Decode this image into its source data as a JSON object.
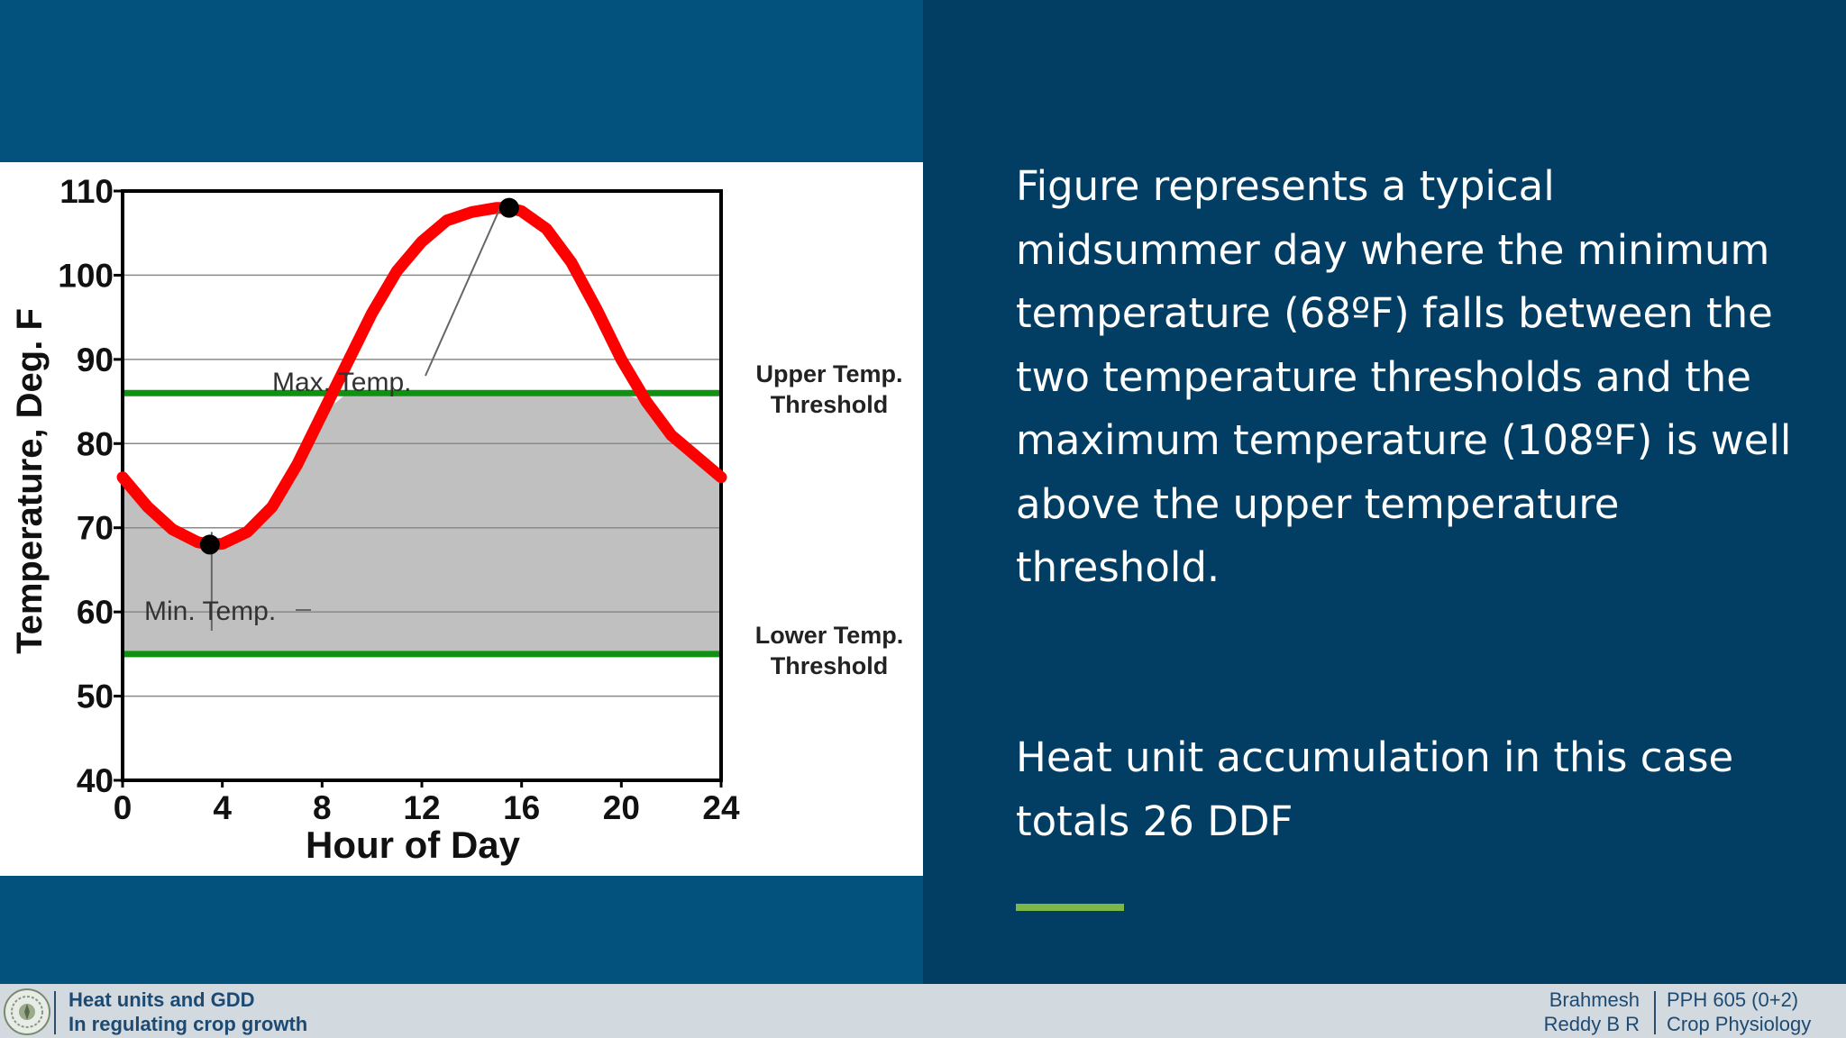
{
  "chart_data": {
    "type": "line",
    "xlabel": "Hour of Day",
    "ylabel": "Temperature, Deg. F",
    "xlim": [
      0,
      24
    ],
    "ylim": [
      40,
      110
    ],
    "x_ticks": [
      "0",
      "4",
      "8",
      "12",
      "16",
      "20",
      "24"
    ],
    "y_ticks": [
      "40",
      "50",
      "60",
      "70",
      "80",
      "90",
      "100",
      "110"
    ],
    "grid": true,
    "series": [
      {
        "color": "#ff0000",
        "x": [
          0,
          1,
          2,
          3,
          3.5,
          4,
          5,
          6,
          7,
          8,
          9,
          10,
          11,
          12,
          13,
          14,
          15,
          15.5,
          16,
          17,
          18,
          19,
          20,
          21,
          22,
          23,
          24
        ],
        "y": [
          76,
          72.5,
          69.8,
          68.3,
          68,
          68.1,
          69.5,
          72.5,
          77.5,
          83.5,
          89.5,
          95.5,
          100.5,
          104,
          106.5,
          107.5,
          108,
          108,
          107.6,
          105.5,
          101.5,
          96,
          90,
          85,
          81,
          78.5,
          76
        ]
      }
    ],
    "points": [
      {
        "label": "Min. Temp.",
        "x": 3.5,
        "y": 68
      },
      {
        "label": "Max. Temp.",
        "x": 15.5,
        "y": 108
      }
    ],
    "thresholds": [
      {
        "label_line1": "Upper Temp.",
        "label_line2": "Threshold",
        "y": 86,
        "color": "#119111"
      },
      {
        "label_line1": "Lower Temp.",
        "label_line2": "Threshold",
        "y": 55,
        "color": "#119111"
      }
    ],
    "shade_color": "#c0c0c0"
  },
  "body_text": "Figure represents a typical midsummer day where the minimum temperature (68ºF) falls between the two temperature thresholds and the maximum temperature (108ºF) is well above the upper temperature threshold.",
  "summary_text": "Heat unit accumulation in this case totals 26 DDF",
  "footer": {
    "title_line1": "Heat units and GDD",
    "title_line2": "In regulating crop growth",
    "author_line1": "Brahmesh",
    "author_line2": "Reddy B R",
    "course_line1": "PPH 605 (0+2)",
    "course_line2": "Crop Physiology"
  },
  "colors": {
    "left_panel": "#03527e",
    "right_panel": "#023e63",
    "accent": "#7ab648",
    "footer_bg": "#d3dadf",
    "footer_text": "#1d4a72"
  }
}
